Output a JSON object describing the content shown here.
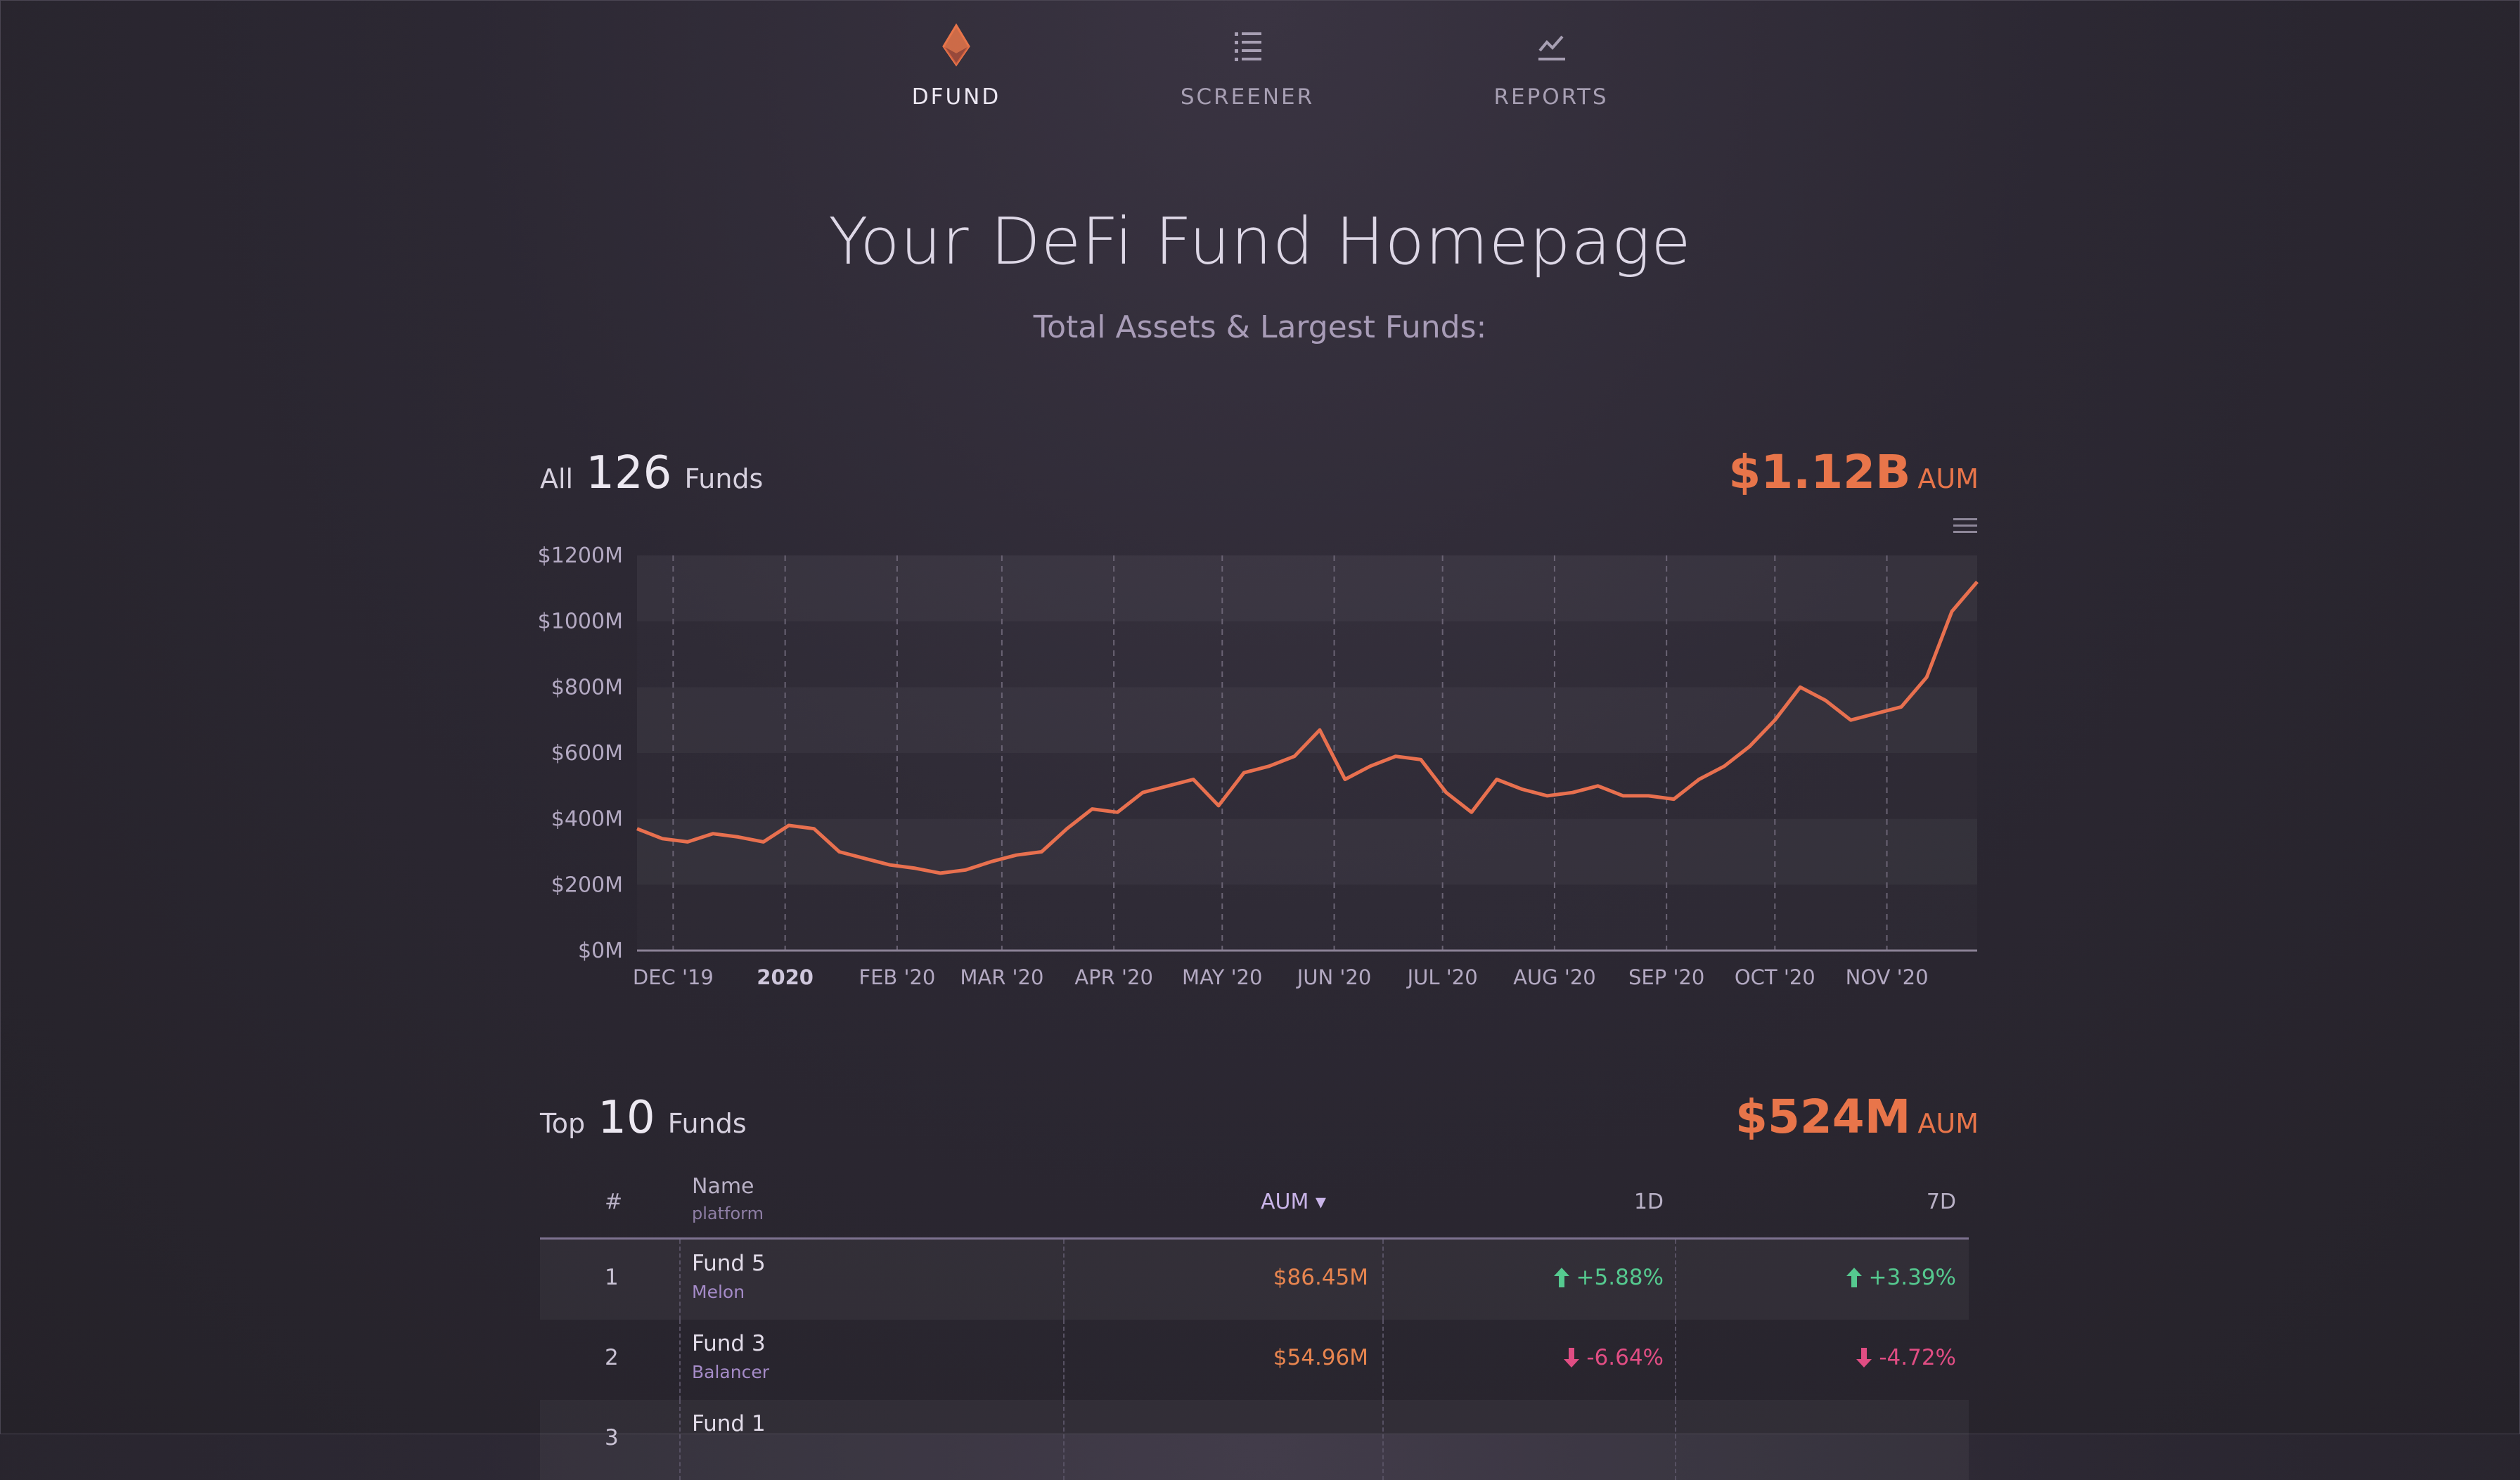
{
  "nav": {
    "items": [
      {
        "label": "DFUND",
        "icon": "ethereum-diamond-icon",
        "active": true
      },
      {
        "label": "SCREENER",
        "icon": "list-icon",
        "active": false
      },
      {
        "label": "REPORTS",
        "icon": "line-chart-icon",
        "active": false
      }
    ]
  },
  "hero": {
    "title": "Your DeFi Fund Homepage",
    "subtitle": "Total Assets & Largest Funds:"
  },
  "all_funds": {
    "prefix": "All",
    "count": "126",
    "suffix": "Funds",
    "aum_value": "$1.12B",
    "aum_label": "AUM"
  },
  "top_funds": {
    "prefix": "Top",
    "count": "10",
    "suffix": "Funds",
    "aum_value": "$524M",
    "aum_label": "AUM"
  },
  "table": {
    "headers": {
      "rank": "#",
      "name": "Name",
      "name_sub": "platform",
      "aum": "AUM ▾",
      "d1": "1D",
      "d7": "7D"
    },
    "rows": [
      {
        "rank": "1",
        "name": "Fund 5",
        "platform": "Melon",
        "aum": "$86.45M",
        "d1": "+5.88%",
        "d1_dir": "up",
        "d7": "+3.39%",
        "d7_dir": "up"
      },
      {
        "rank": "2",
        "name": "Fund 3",
        "platform": "Balancer",
        "aum": "$54.96M",
        "d1": "-6.64%",
        "d1_dir": "down",
        "d7": "-4.72%",
        "d7_dir": "down"
      },
      {
        "rank": "3",
        "name": "Fund 1",
        "platform": "",
        "aum": "",
        "d1": "",
        "d1_dir": "down",
        "d7": "",
        "d7_dir": "up"
      }
    ]
  },
  "colors": {
    "accent": "#e8754a",
    "up": "#55c98f",
    "down": "#e04d83",
    "line": "#e8704f"
  },
  "chart_data": {
    "type": "line",
    "y_tick_labels": [
      "$0M",
      "$200M",
      "$400M",
      "$600M",
      "$800M",
      "$1000M",
      "$1200M"
    ],
    "ylim": [
      0,
      1200
    ],
    "x_tick_labels": [
      "DEC '19",
      "2020",
      "FEB '20",
      "MAR '20",
      "APR '20",
      "MAY '20",
      "JUN '20",
      "JUL '20",
      "AUG '20",
      "SEP '20",
      "OCT '20",
      "NOV '20"
    ],
    "x": [
      "2019-11-21",
      "2019-11-28",
      "2019-12-05",
      "2019-12-12",
      "2019-12-19",
      "2019-12-26",
      "2020-01-02",
      "2020-01-09",
      "2020-01-16",
      "2020-01-23",
      "2020-01-30",
      "2020-02-06",
      "2020-02-13",
      "2020-02-20",
      "2020-02-27",
      "2020-03-05",
      "2020-03-12",
      "2020-03-19",
      "2020-03-26",
      "2020-04-02",
      "2020-04-09",
      "2020-04-16",
      "2020-04-23",
      "2020-04-30",
      "2020-05-07",
      "2020-05-14",
      "2020-05-21",
      "2020-05-28",
      "2020-06-04",
      "2020-06-11",
      "2020-06-18",
      "2020-06-25",
      "2020-07-02",
      "2020-07-09",
      "2020-07-16",
      "2020-07-23",
      "2020-07-30",
      "2020-08-06",
      "2020-08-13",
      "2020-08-20",
      "2020-08-27",
      "2020-09-03",
      "2020-09-10",
      "2020-09-17",
      "2020-09-24",
      "2020-10-01",
      "2020-10-08",
      "2020-10-15",
      "2020-10-22",
      "2020-10-29",
      "2020-11-05",
      "2020-11-12",
      "2020-11-19",
      "2020-11-26"
    ],
    "series": [
      {
        "values": [
          370,
          340,
          330,
          355,
          345,
          330,
          380,
          370,
          300,
          280,
          260,
          250,
          235,
          245,
          270,
          290,
          300,
          370,
          430,
          420,
          480,
          500,
          520,
          440,
          540,
          560,
          590,
          670,
          520,
          560,
          590,
          580,
          480,
          420,
          520,
          490,
          470,
          480,
          500,
          470,
          470,
          460,
          520,
          560,
          620,
          700,
          800,
          760,
          700,
          720,
          740,
          830,
          1030,
          1120
        ]
      }
    ],
    "grid": true,
    "legend": "none"
  }
}
